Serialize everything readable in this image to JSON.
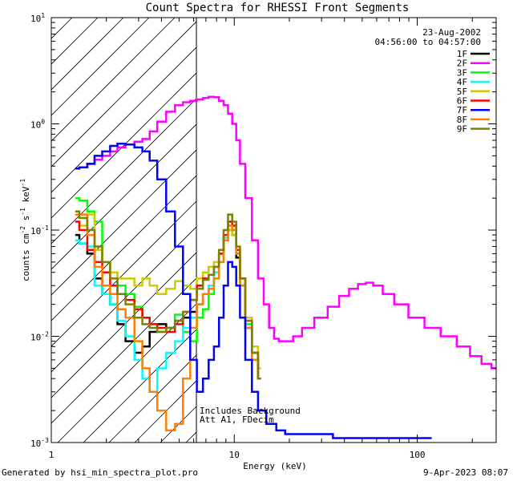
{
  "chart_data": {
    "type": "line",
    "title": "Count Spectra for RHESSI Front Segments",
    "xlabel": "Energy (keV)",
    "ylabel_main": "counts cm",
    "ylabel_sup1": "-2",
    "ylabel_mid1": " s",
    "ylabel_sup2": "-1",
    "ylabel_mid2": " keV",
    "ylabel_sup3": "-1",
    "x_scale": "log",
    "y_scale": "log",
    "xlim": [
      1,
      270
    ],
    "ylim": [
      0.001,
      10
    ],
    "x_ticks": [
      {
        "value": 1,
        "label": "1"
      },
      {
        "value": 10,
        "label": "10"
      },
      {
        "value": 100,
        "label": "100"
      }
    ],
    "y_ticks": [
      {
        "value": 10,
        "base": "10",
        "exp": "1"
      },
      {
        "value": 1,
        "base": "10",
        "exp": "0"
      },
      {
        "value": 0.1,
        "base": "10",
        "exp": "-1"
      },
      {
        "value": 0.01,
        "base": "10",
        "exp": "-2"
      },
      {
        "value": 0.001,
        "base": "10",
        "exp": "-3"
      }
    ],
    "date": "23-Aug-2002",
    "time_range": "04:56:00 to 04:57:00",
    "shaded_region_max_kev": 6,
    "annotations": [
      "Includes Background",
      "Att A1, FDecim"
    ],
    "series": [
      {
        "name": "1F",
        "color": "#000000",
        "kind": "default",
        "x": [
          1.35,
          1.5,
          1.65,
          1.8,
          2.0,
          2.2,
          2.4,
          2.7,
          3.0,
          3.3,
          3.6,
          4.0,
          4.5,
          5.0,
          5.5,
          6.0,
          6.5,
          7.0,
          7.5,
          8.0,
          8.5,
          9.0,
          9.5,
          10.0,
          10.5,
          11.0,
          12.0,
          13.0,
          14.0
        ],
        "y": [
          0.09,
          0.075,
          0.06,
          0.035,
          0.025,
          0.02,
          0.013,
          0.009,
          0.007,
          0.008,
          0.011,
          0.013,
          0.012,
          0.014,
          0.015,
          0.017,
          0.02,
          0.025,
          0.03,
          0.04,
          0.06,
          0.08,
          0.1,
          0.09,
          0.055,
          0.03,
          0.012,
          0.006,
          0.004
        ]
      },
      {
        "name": "2F",
        "color": "#ff00ff",
        "kind": "special",
        "x": [
          1.35,
          1.5,
          1.65,
          1.8,
          2.0,
          2.2,
          2.4,
          2.7,
          3.0,
          3.3,
          3.6,
          4.0,
          4.5,
          5.0,
          5.5,
          6.0,
          6.5,
          7.0,
          7.5,
          8.0,
          8.5,
          9.0,
          9.5,
          10.0,
          10.5,
          11.0,
          12.0,
          13.0,
          14.0,
          15.0,
          16.0,
          17.0,
          18.0,
          20.0,
          22.0,
          25.0,
          30.0,
          35.0,
          40.0,
          45.0,
          50.0,
          55.0,
          60.0,
          70.0,
          80.0,
          100.0,
          120.0,
          150.0,
          180.0,
          210.0,
          240.0,
          270.0
        ],
        "y": [
          0.38,
          0.39,
          0.42,
          0.46,
          0.5,
          0.55,
          0.6,
          0.64,
          0.68,
          0.72,
          0.85,
          1.05,
          1.3,
          1.5,
          1.6,
          1.65,
          1.7,
          1.75,
          1.8,
          1.78,
          1.65,
          1.5,
          1.25,
          1.0,
          0.7,
          0.42,
          0.2,
          0.08,
          0.035,
          0.02,
          0.012,
          0.0095,
          0.009,
          0.009,
          0.01,
          0.012,
          0.015,
          0.019,
          0.024,
          0.028,
          0.031,
          0.032,
          0.03,
          0.025,
          0.02,
          0.015,
          0.012,
          0.01,
          0.008,
          0.0065,
          0.0055,
          0.005
        ]
      },
      {
        "name": "3F",
        "color": "#00ff00",
        "kind": "default",
        "x": [
          1.35,
          1.5,
          1.65,
          1.8,
          2.0,
          2.2,
          2.4,
          2.7,
          3.0,
          3.3,
          3.6,
          4.0,
          4.5,
          5.0,
          5.5,
          6.0,
          6.5,
          7.0,
          7.5,
          8.0,
          8.5,
          9.0,
          9.5,
          10.0,
          10.5,
          11.0,
          12.0,
          13.0,
          14.0
        ],
        "y": [
          0.2,
          0.19,
          0.15,
          0.12,
          0.05,
          0.04,
          0.03,
          0.025,
          0.019,
          0.015,
          0.013,
          0.011,
          0.012,
          0.016,
          0.011,
          0.009,
          0.015,
          0.018,
          0.025,
          0.035,
          0.05,
          0.08,
          0.12,
          0.11,
          0.06,
          0.03,
          0.013,
          0.007,
          0.004
        ]
      },
      {
        "name": "4F",
        "color": "#00ffff",
        "kind": "default",
        "x": [
          1.35,
          1.5,
          1.65,
          1.8,
          2.0,
          2.2,
          2.4,
          2.7,
          3.0,
          3.3,
          3.6,
          4.0,
          4.5,
          5.0,
          5.5,
          6.0,
          6.5,
          7.0,
          7.5,
          8.0,
          8.5,
          9.0,
          9.5,
          10.0,
          10.5,
          11.0,
          12.0,
          13.0,
          14.0
        ],
        "y": [
          0.08,
          0.075,
          0.07,
          0.03,
          0.025,
          0.02,
          0.014,
          0.01,
          0.006,
          0.004,
          0.003,
          0.005,
          0.007,
          0.009,
          0.012,
          0.015,
          0.02,
          0.025,
          0.03,
          0.04,
          0.06,
          0.085,
          0.11,
          0.1,
          0.06,
          0.03,
          0.012,
          0.006,
          0.004
        ]
      },
      {
        "name": "5F",
        "color": "#cccc00",
        "kind": "default",
        "x": [
          1.35,
          1.5,
          1.65,
          1.8,
          2.0,
          2.2,
          2.4,
          2.7,
          3.0,
          3.3,
          3.6,
          4.0,
          4.5,
          5.0,
          5.5,
          6.0,
          6.5,
          7.0,
          7.5,
          8.0,
          8.5,
          9.0,
          9.5,
          10.0,
          10.5,
          11.0,
          12.0,
          13.0,
          14.0
        ],
        "y": [
          0.12,
          0.11,
          0.14,
          0.065,
          0.05,
          0.04,
          0.035,
          0.035,
          0.03,
          0.035,
          0.03,
          0.025,
          0.028,
          0.033,
          0.03,
          0.028,
          0.035,
          0.04,
          0.045,
          0.05,
          0.06,
          0.08,
          0.1,
          0.09,
          0.06,
          0.035,
          0.015,
          0.008,
          0.005
        ]
      },
      {
        "name": "6F",
        "color": "#ff0000",
        "kind": "default",
        "x": [
          1.35,
          1.5,
          1.65,
          1.8,
          2.0,
          2.2,
          2.4,
          2.7,
          3.0,
          3.3,
          3.6,
          4.0,
          4.5,
          5.0,
          5.5,
          6.0,
          6.5,
          7.0,
          7.5,
          8.0,
          8.5,
          9.0,
          9.5,
          10.0,
          10.5,
          11.0,
          12.0,
          13.0,
          14.0
        ],
        "y": [
          0.12,
          0.1,
          0.065,
          0.05,
          0.04,
          0.03,
          0.025,
          0.022,
          0.018,
          0.015,
          0.013,
          0.012,
          0.011,
          0.013,
          0.017,
          0.022,
          0.03,
          0.035,
          0.038,
          0.045,
          0.06,
          0.09,
          0.12,
          0.11,
          0.065,
          0.035,
          0.014,
          0.007,
          0.004
        ]
      },
      {
        "name": "7F",
        "color": "#0000ff",
        "kind": "special",
        "x": [
          1.35,
          1.5,
          1.65,
          1.8,
          2.0,
          2.2,
          2.4,
          2.7,
          3.0,
          3.3,
          3.6,
          4.0,
          4.5,
          5.0,
          5.5,
          6.0,
          6.5,
          7.0,
          7.5,
          8.0,
          8.5,
          9.0,
          9.5,
          10.0,
          10.5,
          11.0,
          12.0,
          13.0,
          14.0,
          16.0,
          18.0,
          20.0,
          25.0,
          30.0,
          40.0,
          50.0,
          60.0,
          80.0,
          100.0,
          120.0
        ],
        "y": [
          0.38,
          0.39,
          0.42,
          0.5,
          0.55,
          0.62,
          0.65,
          0.64,
          0.6,
          0.55,
          0.45,
          0.3,
          0.15,
          0.07,
          0.025,
          0.006,
          0.003,
          0.004,
          0.006,
          0.008,
          0.015,
          0.03,
          0.05,
          0.045,
          0.03,
          0.015,
          0.006,
          0.003,
          0.002,
          0.0015,
          0.0013,
          0.0012,
          0.0012,
          0.0012,
          0.0011,
          0.0011,
          0.0011,
          0.0011,
          0.0011,
          0.0011
        ]
      },
      {
        "name": "8F",
        "color": "#ff8000",
        "kind": "default",
        "x": [
          1.35,
          1.5,
          1.65,
          1.8,
          2.0,
          2.2,
          2.4,
          2.7,
          3.0,
          3.3,
          3.6,
          4.0,
          4.5,
          5.0,
          5.5,
          6.0,
          6.5,
          7.0,
          7.5,
          8.0,
          8.5,
          9.0,
          9.5,
          10.0,
          10.5,
          11.0,
          12.0,
          13.0,
          14.0
        ],
        "y": [
          0.14,
          0.14,
          0.09,
          0.045,
          0.03,
          0.025,
          0.018,
          0.015,
          0.009,
          0.005,
          0.003,
          0.002,
          0.0013,
          0.0015,
          0.004,
          0.012,
          0.02,
          0.025,
          0.028,
          0.035,
          0.05,
          0.08,
          0.11,
          0.1,
          0.06,
          0.03,
          0.012,
          0.006,
          0.004
        ]
      },
      {
        "name": "9F",
        "color": "#808000",
        "kind": "default",
        "x": [
          1.35,
          1.5,
          1.65,
          1.8,
          2.0,
          2.2,
          2.4,
          2.7,
          3.0,
          3.3,
          3.6,
          4.0,
          4.5,
          5.0,
          5.5,
          6.0,
          6.5,
          7.0,
          7.5,
          8.0,
          8.5,
          9.0,
          9.5,
          10.0,
          10.5,
          11.0,
          12.0,
          13.0,
          14.0
        ],
        "y": [
          0.15,
          0.13,
          0.1,
          0.07,
          0.05,
          0.035,
          0.025,
          0.02,
          0.015,
          0.013,
          0.012,
          0.011,
          0.012,
          0.014,
          0.017,
          0.022,
          0.028,
          0.034,
          0.038,
          0.045,
          0.065,
          0.1,
          0.14,
          0.12,
          0.07,
          0.035,
          0.014,
          0.007,
          0.004
        ]
      }
    ]
  },
  "footer": {
    "generated_by": "Generated by hsi_min_spectra_plot.pro",
    "timestamp": "9-Apr-2023 08:07"
  }
}
